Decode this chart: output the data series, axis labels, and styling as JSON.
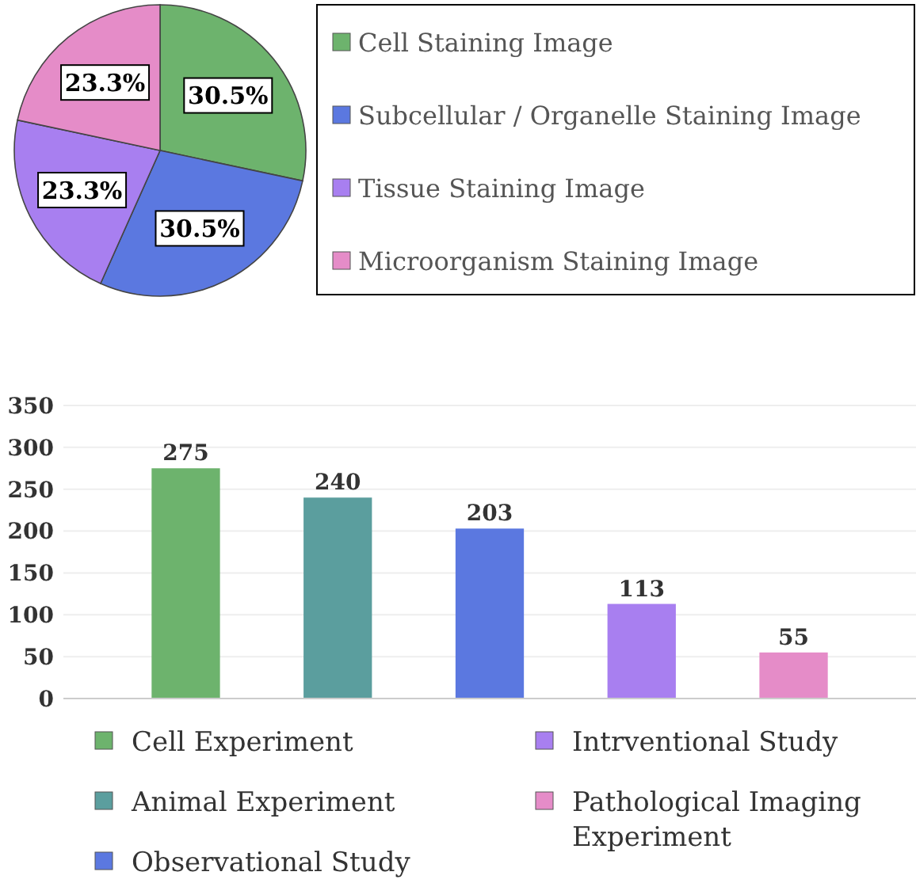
{
  "chart_data": [
    {
      "type": "pie",
      "categories": [
        "Cell Staining Image",
        "Subcellular / Organelle Staining Image",
        "Tissue Staining Image",
        "Microorganism Staining Image"
      ],
      "values": [
        30.5,
        30.5,
        23.3,
        23.3
      ],
      "value_labels": [
        "30.5%",
        "30.5%",
        "23.3%",
        "23.3%"
      ],
      "colors": [
        "#6db36d",
        "#5b78e0",
        "#a87ff0",
        "#e58cc8"
      ],
      "legend": "right"
    },
    {
      "type": "bar",
      "categories": [
        null
      ],
      "series": [
        {
          "name": "Cell Experiment",
          "color": "#6db36d",
          "values": [
            275
          ]
        },
        {
          "name": "Animal Experiment",
          "color": "#5b9e9e",
          "values": [
            240
          ]
        },
        {
          "name": "Observational Study",
          "color": "#5b78e0",
          "values": [
            203
          ]
        },
        {
          "name": "Intrventional Study",
          "color": "#a87ff0",
          "values": [
            113
          ]
        },
        {
          "name": "Pathological Imaging Experiment",
          "color": "#e58cc8",
          "values": [
            55
          ]
        }
      ],
      "ylim": [
        0,
        350
      ],
      "yticks": [
        0,
        50,
        100,
        150,
        200,
        250,
        300,
        350
      ],
      "grid": "y",
      "data_labels": true,
      "legend": "bottom"
    }
  ]
}
